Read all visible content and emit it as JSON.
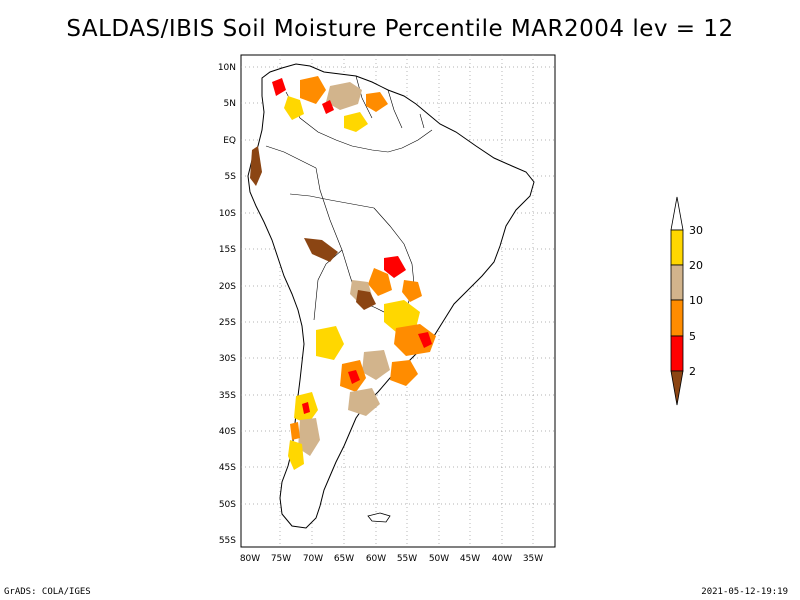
{
  "title": "SALDAS/IBIS Soil Moisture Percentile MAR2004 lev = 12",
  "footer": {
    "left": "GrADS: COLA/IGES",
    "right": "2021-05-12-19:19"
  },
  "map": {
    "lat_ticks": [
      "10N",
      "5N",
      "EQ",
      "5S",
      "10S",
      "15S",
      "20S",
      "25S",
      "30S",
      "35S",
      "40S",
      "45S",
      "50S",
      "55S"
    ],
    "lon_ticks": [
      "80W",
      "75W",
      "70W",
      "65W",
      "60W",
      "55W",
      "50W",
      "45W",
      "40W",
      "35W"
    ],
    "lat_range": [
      -56,
      11
    ],
    "lon_range": [
      -81,
      -33
    ]
  },
  "legend": {
    "labels": [
      "30",
      "20",
      "10",
      "5",
      "2"
    ],
    "colors": {
      "above_30": "#ffffff",
      "20_30": "#ffd700",
      "10_20": "#d2b48c",
      "5_10": "#ff8c00",
      "2_5": "#ff0000",
      "below_2": "#8b4513"
    }
  }
}
